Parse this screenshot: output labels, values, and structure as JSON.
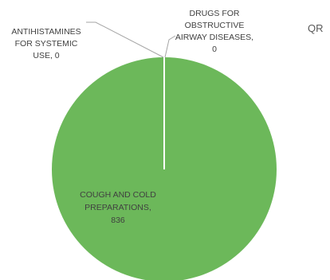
{
  "chart_data": {
    "type": "pie",
    "title": "QR",
    "slices": [
      {
        "label_lines": [
          "COUGH AND COLD",
          "PREPARATIONS,",
          "836"
        ],
        "category": "COUGH AND COLD PREPARATIONS",
        "value": 836,
        "color": "#6cb85a"
      },
      {
        "label_lines": [
          "ANTIHISTAMINES",
          "FOR SYSTEMIC",
          "USE, 0"
        ],
        "category": "ANTIHISTAMINES FOR SYSTEMIC USE",
        "value": 0,
        "color": "#5b9bd5"
      },
      {
        "label_lines": [
          "DRUGS FOR",
          "OBSTRUCTIVE",
          "AIRWAY DISEASES,",
          "0"
        ],
        "category": "DRUGS FOR OBSTRUCTIVE AIRWAY DISEASES",
        "value": 0,
        "color": "#ed7d31"
      }
    ],
    "slice_border_color": "#ffffff",
    "leader_line_color": "#a6a6a6"
  }
}
